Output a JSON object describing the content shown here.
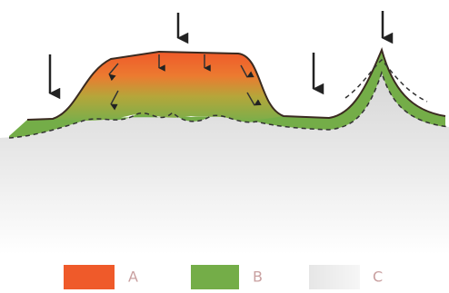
{
  "legend": [
    {
      "label": "A"
    },
    {
      "label": "B"
    },
    {
      "label": "C"
    }
  ]
}
